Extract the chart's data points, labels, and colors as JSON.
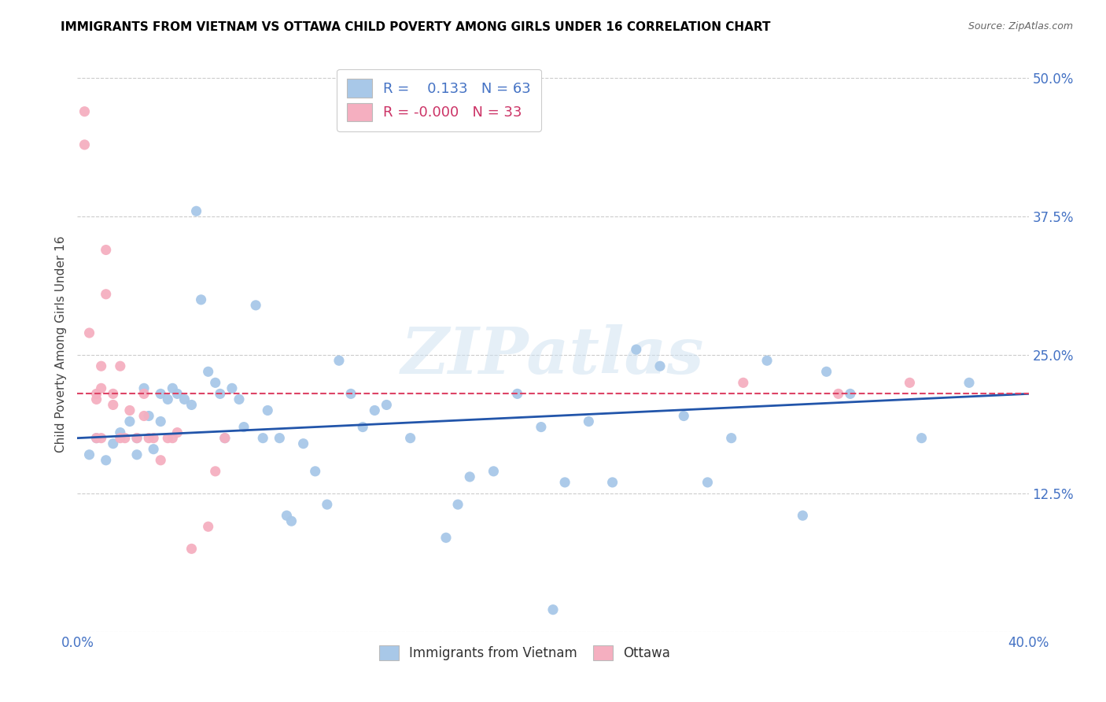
{
  "title": "IMMIGRANTS FROM VIETNAM VS OTTAWA CHILD POVERTY AMONG GIRLS UNDER 16 CORRELATION CHART",
  "source": "Source: ZipAtlas.com",
  "ylabel": "Child Poverty Among Girls Under 16",
  "xlim": [
    0.0,
    0.4
  ],
  "ylim": [
    0.0,
    0.52
  ],
  "xticks": [
    0.0,
    0.05,
    0.1,
    0.15,
    0.2,
    0.25,
    0.3,
    0.35,
    0.4
  ],
  "yticks": [
    0.0,
    0.125,
    0.25,
    0.375,
    0.5
  ],
  "yticklabels": [
    "",
    "12.5%",
    "25.0%",
    "37.5%",
    "50.0%"
  ],
  "blue_color": "#a8c8e8",
  "pink_color": "#f5afc0",
  "blue_line_color": "#2255aa",
  "pink_line_color": "#dd4466",
  "watermark": "ZIPatlas",
  "blue_scatter_x": [
    0.008,
    0.005,
    0.012,
    0.015,
    0.018,
    0.022,
    0.025,
    0.025,
    0.028,
    0.03,
    0.032,
    0.035,
    0.035,
    0.038,
    0.04,
    0.042,
    0.045,
    0.048,
    0.05,
    0.052,
    0.055,
    0.058,
    0.06,
    0.062,
    0.065,
    0.068,
    0.07,
    0.075,
    0.078,
    0.08,
    0.085,
    0.088,
    0.09,
    0.095,
    0.1,
    0.105,
    0.11,
    0.115,
    0.12,
    0.125,
    0.13,
    0.14,
    0.155,
    0.16,
    0.165,
    0.175,
    0.185,
    0.195,
    0.2,
    0.205,
    0.215,
    0.225,
    0.235,
    0.245,
    0.255,
    0.265,
    0.275,
    0.29,
    0.305,
    0.315,
    0.325,
    0.355,
    0.375
  ],
  "blue_scatter_y": [
    0.175,
    0.16,
    0.155,
    0.17,
    0.18,
    0.19,
    0.175,
    0.16,
    0.22,
    0.195,
    0.165,
    0.215,
    0.19,
    0.21,
    0.22,
    0.215,
    0.21,
    0.205,
    0.38,
    0.3,
    0.235,
    0.225,
    0.215,
    0.175,
    0.22,
    0.21,
    0.185,
    0.295,
    0.175,
    0.2,
    0.175,
    0.105,
    0.1,
    0.17,
    0.145,
    0.115,
    0.245,
    0.215,
    0.185,
    0.2,
    0.205,
    0.175,
    0.085,
    0.115,
    0.14,
    0.145,
    0.215,
    0.185,
    0.02,
    0.135,
    0.19,
    0.135,
    0.255,
    0.24,
    0.195,
    0.135,
    0.175,
    0.245,
    0.105,
    0.235,
    0.215,
    0.175,
    0.225
  ],
  "pink_scatter_x": [
    0.003,
    0.003,
    0.005,
    0.008,
    0.008,
    0.008,
    0.01,
    0.01,
    0.01,
    0.012,
    0.012,
    0.015,
    0.015,
    0.018,
    0.018,
    0.02,
    0.022,
    0.025,
    0.028,
    0.028,
    0.03,
    0.032,
    0.035,
    0.038,
    0.04,
    0.042,
    0.048,
    0.055,
    0.058,
    0.062,
    0.28,
    0.32,
    0.35
  ],
  "pink_scatter_y": [
    0.47,
    0.44,
    0.27,
    0.215,
    0.21,
    0.175,
    0.24,
    0.22,
    0.175,
    0.345,
    0.305,
    0.215,
    0.205,
    0.24,
    0.175,
    0.175,
    0.2,
    0.175,
    0.215,
    0.195,
    0.175,
    0.175,
    0.155,
    0.175,
    0.175,
    0.18,
    0.075,
    0.095,
    0.145,
    0.175,
    0.225,
    0.215,
    0.225
  ],
  "blue_trend_x": [
    0.0,
    0.4
  ],
  "blue_trend_y": [
    0.175,
    0.215
  ],
  "pink_trend_x": [
    0.0,
    0.4
  ],
  "pink_trend_y": [
    0.215,
    0.215
  ]
}
